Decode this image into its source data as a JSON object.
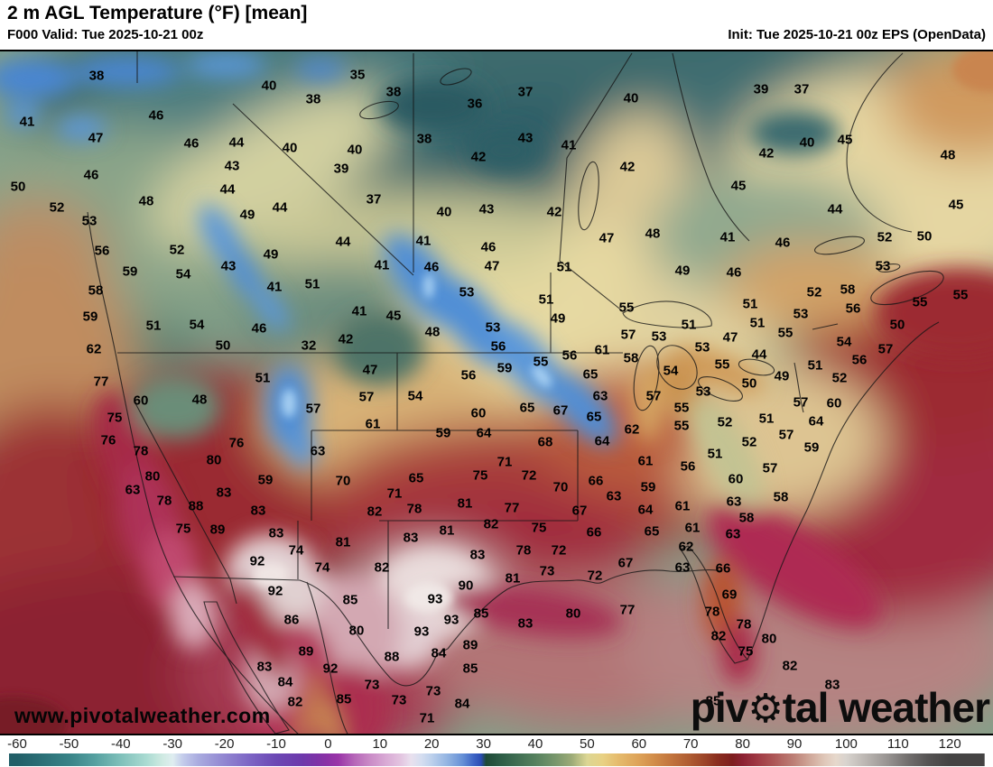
{
  "header": {
    "title": "2 m AGL Temperature (°F) [mean]",
    "valid": "F000 Valid: Tue 2025-10-21 00z",
    "init": "Init: Tue 2025-10-21 00z EPS (OpenData)"
  },
  "watermark": {
    "url": "www.pivotalweather.com",
    "brand_p1": "piv",
    "gear_glyph": "⚙",
    "brand_p2": "tal weather"
  },
  "colorbar": {
    "unit": "°F",
    "min": -60,
    "max": 120,
    "ticks": [
      "-60",
      "-50",
      "-40",
      "-30",
      "-20",
      "-10",
      "0",
      "10",
      "20",
      "30",
      "40",
      "50",
      "60",
      "70",
      "80",
      "90",
      "100",
      "110",
      "120"
    ],
    "stops": [
      {
        "v": -60,
        "c": "#215f68"
      },
      {
        "v": -55,
        "c": "#2b7077"
      },
      {
        "v": -50,
        "c": "#388387"
      },
      {
        "v": -45,
        "c": "#55a0a0"
      },
      {
        "v": -40,
        "c": "#7fc0ba"
      },
      {
        "v": -35,
        "c": "#aadbd2"
      },
      {
        "v": -32,
        "c": "#cfeae2"
      },
      {
        "v": -30,
        "c": "#dfeef0"
      },
      {
        "v": -28,
        "c": "#c3cbeb"
      },
      {
        "v": -25,
        "c": "#a9abdf"
      },
      {
        "v": -20,
        "c": "#9186d1"
      },
      {
        "v": -15,
        "c": "#7c64c4"
      },
      {
        "v": -10,
        "c": "#6b48b4"
      },
      {
        "v": -5,
        "c": "#6d39ab"
      },
      {
        "v": -2,
        "c": "#7e32a7"
      },
      {
        "v": 0,
        "c": "#8c31a6"
      },
      {
        "v": 2,
        "c": "#9a35a8"
      },
      {
        "v": 5,
        "c": "#b565b8"
      },
      {
        "v": 8,
        "c": "#c98ac6"
      },
      {
        "v": 11,
        "c": "#d8a8d4"
      },
      {
        "v": 14,
        "c": "#e3c4e0"
      },
      {
        "v": 16,
        "c": "#e9e0ee"
      },
      {
        "v": 18,
        "c": "#d5def0"
      },
      {
        "v": 20,
        "c": "#bcd0ec"
      },
      {
        "v": 23,
        "c": "#93b4e2"
      },
      {
        "v": 26,
        "c": "#6590d6"
      },
      {
        "v": 28,
        "c": "#3f66c6"
      },
      {
        "v": 29.5,
        "c": "#2a4cb4"
      },
      {
        "v": 30.5,
        "c": "#1d4936"
      },
      {
        "v": 33,
        "c": "#2a5a44"
      },
      {
        "v": 36,
        "c": "#3c6b50"
      },
      {
        "v": 40,
        "c": "#55815e"
      },
      {
        "v": 44,
        "c": "#79976c"
      },
      {
        "v": 47,
        "c": "#9cab77"
      },
      {
        "v": 50,
        "c": "#dcd694"
      },
      {
        "v": 53,
        "c": "#e8d184"
      },
      {
        "v": 56,
        "c": "#e5bb6d"
      },
      {
        "v": 60,
        "c": "#dda258"
      },
      {
        "v": 63,
        "c": "#d18c49"
      },
      {
        "v": 66,
        "c": "#c3763e"
      },
      {
        "v": 70,
        "c": "#ad5a31"
      },
      {
        "v": 73,
        "c": "#9a4227"
      },
      {
        "v": 75,
        "c": "#8b2f1f"
      },
      {
        "v": 78,
        "c": "#7d1d1d"
      },
      {
        "v": 80,
        "c": "#8c2133"
      },
      {
        "v": 83,
        "c": "#a03a44"
      },
      {
        "v": 86,
        "c": "#ad5656"
      },
      {
        "v": 90,
        "c": "#bd8177"
      },
      {
        "v": 93,
        "c": "#d0a899"
      },
      {
        "v": 96,
        "c": "#e0c9bb"
      },
      {
        "v": 98,
        "c": "#e6d8cc"
      },
      {
        "v": 100,
        "c": "#d8d3ce"
      },
      {
        "v": 104,
        "c": "#b9b4b0"
      },
      {
        "v": 108,
        "c": "#979391"
      },
      {
        "v": 112,
        "c": "#716e6d"
      },
      {
        "v": 116,
        "c": "#545252"
      },
      {
        "v": 120,
        "c": "#444343"
      }
    ]
  },
  "map": {
    "labels": [
      [
        38,
        107,
        82
      ],
      [
        40,
        298,
        93
      ],
      [
        38,
        347,
        108
      ],
      [
        41,
        30,
        133
      ],
      [
        46,
        173,
        126
      ],
      [
        47,
        106,
        151
      ],
      [
        46,
        212,
        157
      ],
      [
        44,
        262,
        156
      ],
      [
        40,
        321,
        162
      ],
      [
        43,
        257,
        182
      ],
      [
        46,
        101,
        192
      ],
      [
        44,
        252,
        208
      ],
      [
        50,
        20,
        205
      ],
      [
        52,
        63,
        228
      ],
      [
        48,
        162,
        221
      ],
      [
        49,
        274,
        236
      ],
      [
        44,
        310,
        228
      ],
      [
        53,
        99,
        243
      ],
      [
        56,
        113,
        276
      ],
      [
        52,
        196,
        275
      ],
      [
        49,
        300,
        280
      ],
      [
        43,
        253,
        293
      ],
      [
        59,
        144,
        299
      ],
      [
        54,
        203,
        302
      ],
      [
        35,
        396,
        81
      ],
      [
        38,
        436,
        100
      ],
      [
        37,
        582,
        100
      ],
      [
        36,
        526,
        113
      ],
      [
        40,
        699,
        107
      ],
      [
        38,
        470,
        152
      ],
      [
        43,
        582,
        151
      ],
      [
        41,
        630,
        159
      ],
      [
        40,
        393,
        164
      ],
      [
        42,
        530,
        172
      ],
      [
        42,
        695,
        183
      ],
      [
        39,
        378,
        185
      ],
      [
        37,
        414,
        219
      ],
      [
        40,
        492,
        233
      ],
      [
        43,
        539,
        230
      ],
      [
        42,
        614,
        233
      ],
      [
        44,
        380,
        266
      ],
      [
        41,
        469,
        265
      ],
      [
        46,
        541,
        272
      ],
      [
        47,
        672,
        262
      ],
      [
        48,
        723,
        257
      ],
      [
        41,
        423,
        292
      ],
      [
        46,
        478,
        294
      ],
      [
        47,
        545,
        293
      ],
      [
        51,
        625,
        294
      ],
      [
        39,
        843,
        97
      ],
      [
        37,
        888,
        97
      ],
      [
        40,
        894,
        156
      ],
      [
        45,
        936,
        153
      ],
      [
        42,
        849,
        168
      ],
      [
        48,
        1050,
        170
      ],
      [
        45,
        818,
        204
      ],
      [
        44,
        925,
        230
      ],
      [
        45,
        1059,
        225
      ],
      [
        41,
        806,
        261
      ],
      [
        52,
        980,
        261
      ],
      [
        50,
        1024,
        260
      ],
      [
        46,
        867,
        267
      ],
      [
        49,
        756,
        298
      ],
      [
        46,
        813,
        300
      ],
      [
        53,
        978,
        293
      ],
      [
        58,
        106,
        320
      ],
      [
        41,
        304,
        316
      ],
      [
        51,
        346,
        313
      ],
      [
        59,
        100,
        349
      ],
      [
        51,
        170,
        359
      ],
      [
        54,
        218,
        358
      ],
      [
        46,
        287,
        362
      ],
      [
        50,
        247,
        381
      ],
      [
        32,
        342,
        381
      ],
      [
        62,
        104,
        385
      ],
      [
        77,
        112,
        421
      ],
      [
        51,
        291,
        417
      ],
      [
        60,
        156,
        442
      ],
      [
        48,
        221,
        441
      ],
      [
        57,
        347,
        451
      ],
      [
        75,
        127,
        461
      ],
      [
        76,
        120,
        486
      ],
      [
        78,
        156,
        498
      ],
      [
        76,
        262,
        489
      ],
      [
        63,
        352,
        498
      ],
      [
        80,
        237,
        508
      ],
      [
        80,
        169,
        526
      ],
      [
        59,
        294,
        530
      ],
      [
        63,
        147,
        541
      ],
      [
        83,
        248,
        544
      ],
      [
        78,
        182,
        553
      ],
      [
        88,
        217,
        559
      ],
      [
        83,
        286,
        564
      ],
      [
        53,
        517,
        322
      ],
      [
        51,
        605,
        330
      ],
      [
        41,
        398,
        343
      ],
      [
        45,
        436,
        348
      ],
      [
        49,
        618,
        351
      ],
      [
        55,
        694,
        339
      ],
      [
        48,
        479,
        366
      ],
      [
        53,
        546,
        361
      ],
      [
        42,
        383,
        374
      ],
      [
        57,
        696,
        369
      ],
      [
        53,
        730,
        371
      ],
      [
        56,
        552,
        382
      ],
      [
        56,
        631,
        392
      ],
      [
        61,
        667,
        386
      ],
      [
        58,
        699,
        395
      ],
      [
        55,
        599,
        399
      ],
      [
        59,
        559,
        406
      ],
      [
        65,
        654,
        413
      ],
      [
        47,
        410,
        408
      ],
      [
        56,
        519,
        414
      ],
      [
        54,
        460,
        437
      ],
      [
        57,
        406,
        438
      ],
      [
        63,
        665,
        437
      ],
      [
        57,
        724,
        437
      ],
      [
        60,
        530,
        456
      ],
      [
        65,
        584,
        450
      ],
      [
        67,
        621,
        453
      ],
      [
        65,
        658,
        460
      ],
      [
        61,
        413,
        468
      ],
      [
        62,
        700,
        474
      ],
      [
        59,
        491,
        478
      ],
      [
        64,
        536,
        478
      ],
      [
        68,
        604,
        488
      ],
      [
        64,
        667,
        487
      ],
      [
        61,
        715,
        509
      ],
      [
        70,
        380,
        531
      ],
      [
        65,
        461,
        528
      ],
      [
        71,
        559,
        510
      ],
      [
        75,
        532,
        525
      ],
      [
        72,
        586,
        525
      ],
      [
        70,
        621,
        538
      ],
      [
        66,
        660,
        531
      ],
      [
        59,
        718,
        538
      ],
      [
        63,
        680,
        548
      ],
      [
        71,
        437,
        545
      ],
      [
        78,
        459,
        562
      ],
      [
        81,
        515,
        556
      ],
      [
        77,
        567,
        561
      ],
      [
        82,
        415,
        565
      ],
      [
        67,
        642,
        564
      ],
      [
        64,
        715,
        563
      ],
      [
        52,
        902,
        322
      ],
      [
        58,
        939,
        319
      ],
      [
        55,
        1019,
        333
      ],
      [
        55,
        1064,
        325
      ],
      [
        51,
        831,
        335
      ],
      [
        56,
        945,
        340
      ],
      [
        50,
        994,
        358
      ],
      [
        51,
        763,
        358
      ],
      [
        51,
        839,
        356
      ],
      [
        53,
        887,
        346
      ],
      [
        47,
        809,
        372
      ],
      [
        55,
        870,
        367
      ],
      [
        54,
        935,
        377
      ],
      [
        53,
        778,
        383
      ],
      [
        55,
        800,
        402
      ],
      [
        44,
        841,
        391
      ],
      [
        57,
        981,
        385
      ],
      [
        56,
        952,
        397
      ],
      [
        54,
        743,
        409
      ],
      [
        51,
        903,
        403
      ],
      [
        49,
        866,
        415
      ],
      [
        50,
        830,
        423
      ],
      [
        52,
        930,
        417
      ],
      [
        53,
        779,
        432
      ],
      [
        60,
        924,
        445
      ],
      [
        57,
        887,
        444
      ],
      [
        55,
        755,
        450
      ],
      [
        55,
        755,
        470
      ],
      [
        52,
        803,
        466
      ],
      [
        51,
        849,
        462
      ],
      [
        64,
        904,
        465
      ],
      [
        57,
        871,
        480
      ],
      [
        52,
        830,
        488
      ],
      [
        59,
        899,
        494
      ],
      [
        51,
        792,
        501
      ],
      [
        56,
        762,
        515
      ],
      [
        57,
        853,
        517
      ],
      [
        60,
        815,
        529
      ],
      [
        63,
        813,
        554
      ],
      [
        61,
        756,
        559
      ],
      [
        58,
        865,
        549
      ],
      [
        58,
        827,
        572
      ],
      [
        75,
        203,
        584
      ],
      [
        89,
        241,
        585
      ],
      [
        83,
        306,
        589
      ],
      [
        74,
        328,
        608
      ],
      [
        74,
        357,
        627
      ],
      [
        92,
        285,
        620
      ],
      [
        92,
        305,
        653
      ],
      [
        86,
        323,
        685
      ],
      [
        89,
        339,
        720
      ],
      [
        92,
        366,
        739
      ],
      [
        83,
        293,
        737
      ],
      [
        84,
        316,
        754
      ],
      [
        82,
        327,
        776
      ],
      [
        81,
        380,
        599
      ],
      [
        83,
        455,
        594
      ],
      [
        81,
        495,
        586
      ],
      [
        82,
        544,
        579
      ],
      [
        75,
        597,
        583
      ],
      [
        66,
        658,
        588
      ],
      [
        65,
        722,
        587
      ],
      [
        82,
        423,
        627
      ],
      [
        83,
        529,
        613
      ],
      [
        78,
        580,
        608
      ],
      [
        72,
        619,
        608
      ],
      [
        67,
        693,
        622
      ],
      [
        73,
        606,
        631
      ],
      [
        72,
        659,
        636
      ],
      [
        81,
        568,
        639
      ],
      [
        90,
        516,
        647
      ],
      [
        85,
        388,
        663
      ],
      [
        93,
        482,
        662
      ],
      [
        77,
        695,
        674
      ],
      [
        80,
        635,
        678
      ],
      [
        85,
        533,
        678
      ],
      [
        83,
        582,
        689
      ],
      [
        80,
        395,
        697
      ],
      [
        93,
        500,
        685
      ],
      [
        93,
        467,
        698
      ],
      [
        89,
        521,
        713
      ],
      [
        88,
        434,
        726
      ],
      [
        84,
        486,
        722
      ],
      [
        85,
        521,
        739
      ],
      [
        73,
        412,
        757
      ],
      [
        73,
        480,
        764
      ],
      [
        73,
        442,
        774
      ],
      [
        84,
        512,
        778
      ],
      [
        85,
        381,
        773
      ],
      [
        71,
        473,
        794
      ],
      [
        61,
        767,
        583
      ],
      [
        62,
        760,
        604
      ],
      [
        63,
        812,
        590
      ],
      [
        63,
        756,
        627
      ],
      [
        66,
        801,
        628
      ],
      [
        69,
        808,
        657
      ],
      [
        78,
        789,
        676
      ],
      [
        78,
        824,
        690
      ],
      [
        82,
        796,
        703
      ],
      [
        80,
        852,
        706
      ],
      [
        75,
        826,
        720
      ],
      [
        82,
        875,
        736
      ],
      [
        83,
        922,
        757
      ],
      [
        85,
        790,
        775
      ]
    ]
  }
}
